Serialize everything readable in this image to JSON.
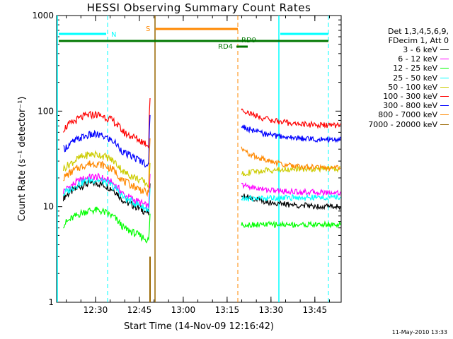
{
  "chart_data": {
    "type": "line",
    "title": "HESSI Observing Summary Count Rates",
    "xlabel": "Start Time (14-Nov-09 12:16:42)",
    "ylabel": "Count Rate (s⁻¹ detector⁻¹)",
    "yscale": "log",
    "ylim": [
      1,
      1000
    ],
    "xlim": [
      "12:16:42",
      "13:54:00"
    ],
    "yticks": [
      "1",
      "10",
      "100",
      "1000"
    ],
    "xticks": [
      "12:30",
      "12:45",
      "13:00",
      "13:15",
      "13:30",
      "13:45"
    ],
    "legend_header": [
      "Det 1,3,4,5,6,9,",
      "FDecim 1, Att 0"
    ],
    "series": [
      {
        "name": "3 - 6 keV",
        "color": "#000000",
        "values": [
          [
            12.5,
            12
          ],
          [
            12.8,
            13
          ],
          [
            13.0,
            12.5
          ],
          [
            13.2,
            12
          ],
          [
            13.3,
            11
          ],
          [
            13.5,
            12
          ],
          [
            13.7,
            10
          ]
        ]
      },
      {
        "name": "6 - 12 keV",
        "color": "#ff00ff",
        "values": [
          [
            14.5,
            15
          ],
          [
            15,
            15
          ],
          [
            15.5,
            14
          ],
          [
            16,
            14
          ],
          [
            16.5,
            13
          ],
          [
            17,
            12
          ],
          [
            17.5,
            14
          ]
        ]
      },
      {
        "name": "12 - 25 keV",
        "color": "#00ff00",
        "values": [
          [
            6.5,
            7
          ],
          [
            7.5,
            7
          ],
          [
            8,
            6.5
          ],
          [
            7.5,
            6
          ],
          [
            7,
            5.5
          ],
          [
            6.5,
            5
          ],
          [
            5,
            6.5
          ]
        ]
      },
      {
        "name": "25 - 50 keV",
        "color": "#00ffff",
        "values": [
          [
            13.5,
            14
          ],
          [
            14,
            14
          ],
          [
            13.5,
            13
          ],
          [
            13,
            13
          ],
          [
            12.5,
            12
          ],
          [
            12,
            13
          ],
          [
            13.5,
            12.5
          ]
        ]
      },
      {
        "name": "50 - 100 keV",
        "color": "#cccc00",
        "values": [
          [
            25,
            28
          ],
          [
            27,
            27
          ],
          [
            26,
            26
          ],
          [
            25,
            25
          ],
          [
            24,
            24
          ],
          [
            22,
            22
          ],
          [
            25,
            25
          ]
        ]
      },
      {
        "name": "100 - 300 keV",
        "color": "#ff0000",
        "values": [
          [
            65,
            70
          ],
          [
            75,
            72
          ],
          [
            70,
            68
          ],
          [
            65,
            60
          ],
          [
            55,
            50
          ],
          [
            105,
            85
          ],
          [
            75,
            70
          ]
        ]
      },
      {
        "name": "300 - 800 keV",
        "color": "#0000ff",
        "values": [
          [
            40,
            45
          ],
          [
            48,
            45
          ],
          [
            43,
            40
          ],
          [
            38,
            35
          ],
          [
            32,
            30
          ],
          [
            70,
            60
          ],
          [
            55,
            50
          ]
        ]
      },
      {
        "name": "800 - 7000 keV",
        "color": "#ff8800",
        "values": [
          [
            20,
            22
          ],
          [
            22,
            21
          ],
          [
            21,
            20
          ],
          [
            19,
            18
          ],
          [
            17,
            16
          ],
          [
            40,
            35
          ],
          [
            28,
            25
          ]
        ]
      },
      {
        "name": "7000 - 20000 keV",
        "color": "#996600",
        "values": []
      }
    ],
    "annotations": [
      {
        "text": "N",
        "color": "#00ffff"
      },
      {
        "text": "S",
        "color": "#ff8800"
      },
      {
        "text": "RD9",
        "color": "#007700"
      },
      {
        "text": "RD4",
        "color": "#007700"
      }
    ],
    "timestamp": "11-May-2010 13:33"
  }
}
